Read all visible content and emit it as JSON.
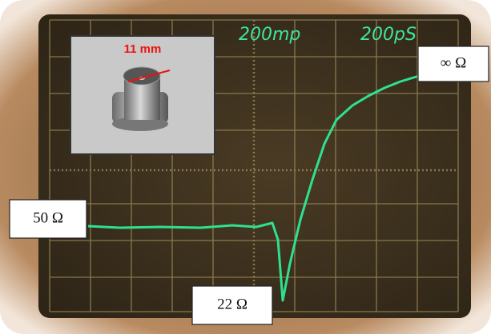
{
  "screen": {
    "labels": [
      "200mp",
      "200pS"
    ]
  },
  "inset": {
    "label": "11 mm"
  },
  "annotations": {
    "left": "50 Ω",
    "bottom": "22 Ω",
    "right": "∞ Ω"
  }
}
